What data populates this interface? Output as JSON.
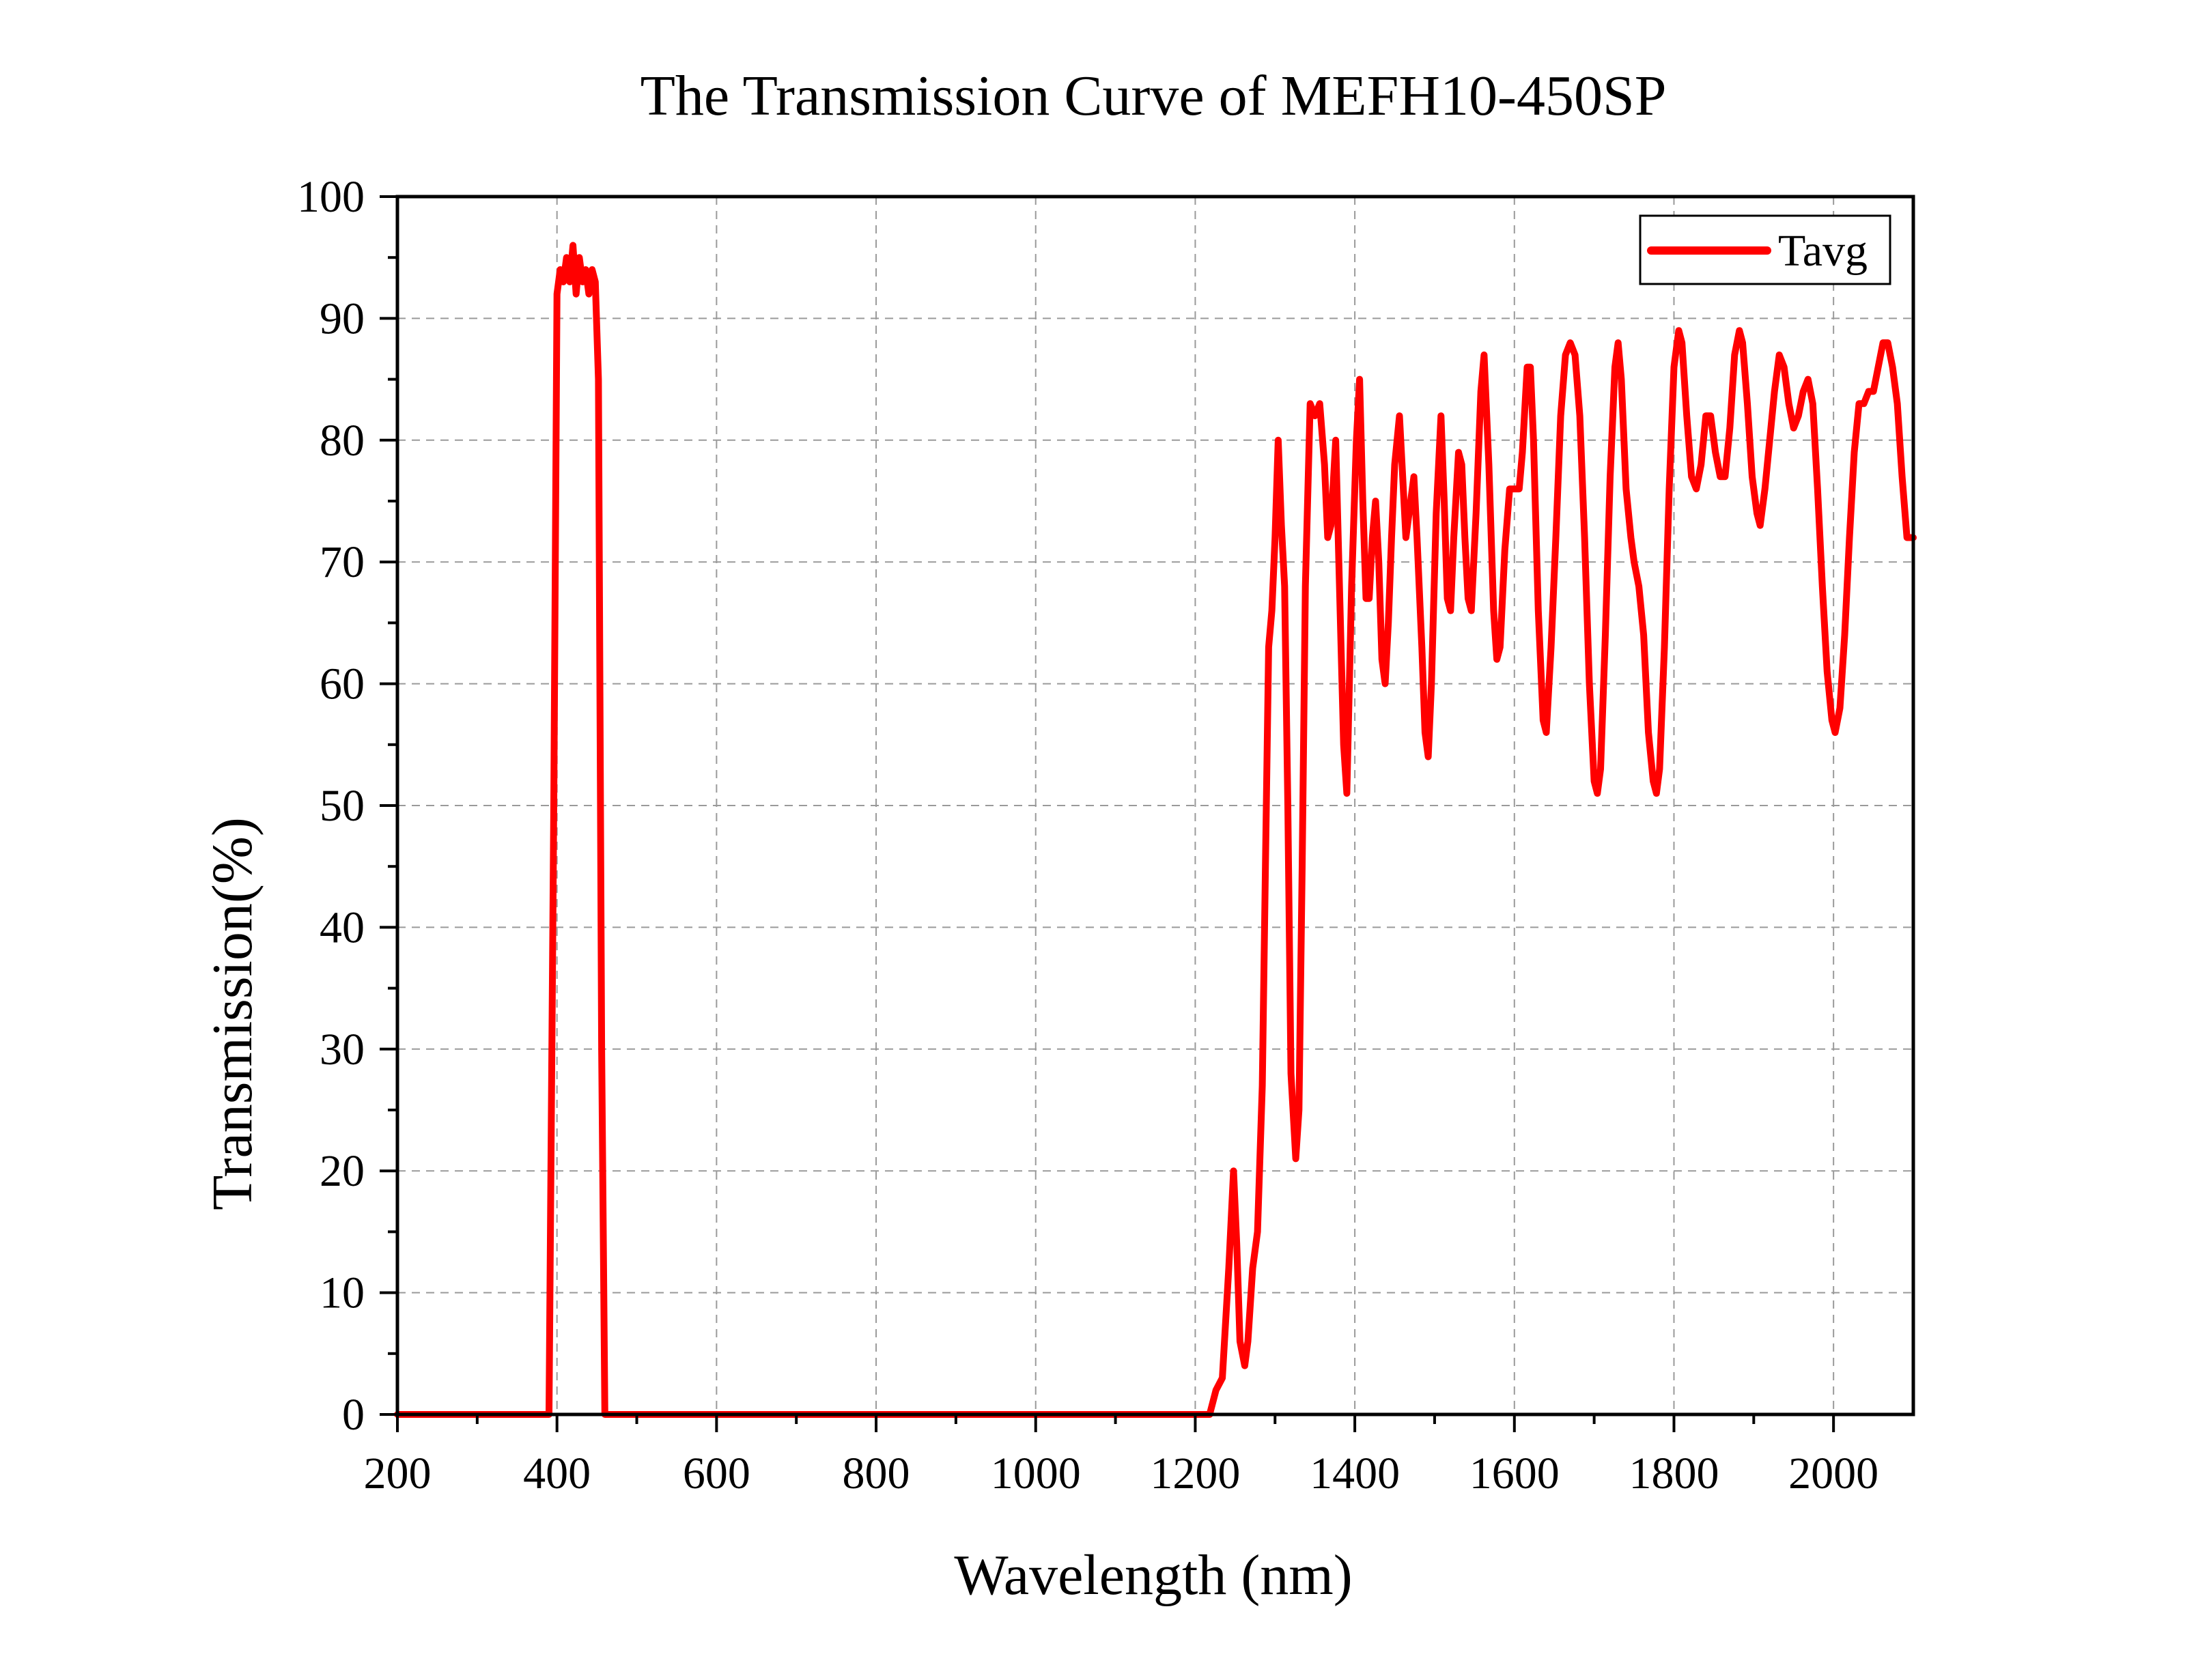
{
  "chart_data": {
    "type": "line",
    "title": "The Transmission Curve of MEFH10-450SP",
    "xlabel": "Wavelength (nm)",
    "ylabel": "Transmission(%)",
    "xlim": [
      200,
      2100
    ],
    "ylim": [
      0,
      100
    ],
    "x_ticks": [
      200,
      400,
      600,
      800,
      1000,
      1200,
      1400,
      1600,
      1800,
      2000
    ],
    "x_tick_labels": [
      "200",
      "400",
      "600",
      "800",
      "1000",
      "1200",
      "1400",
      "1600",
      "1800",
      "2000"
    ],
    "y_ticks": [
      0,
      10,
      20,
      30,
      40,
      50,
      60,
      70,
      80,
      90,
      100
    ],
    "y_tick_labels": [
      "0",
      "10",
      "20",
      "30",
      "40",
      "50",
      "60",
      "70",
      "80",
      "90",
      "100"
    ],
    "grid": true,
    "legend_position": "top-right",
    "series": [
      {
        "name": "Tavg",
        "color": "#ff0000",
        "points": [
          [
            200,
            0
          ],
          [
            390,
            0
          ],
          [
            396,
            50
          ],
          [
            400,
            92
          ],
          [
            404,
            94
          ],
          [
            408,
            93
          ],
          [
            412,
            95
          ],
          [
            416,
            93
          ],
          [
            420,
            96
          ],
          [
            424,
            92
          ],
          [
            428,
            95
          ],
          [
            432,
            93
          ],
          [
            436,
            94
          ],
          [
            440,
            92
          ],
          [
            444,
            94
          ],
          [
            448,
            93
          ],
          [
            452,
            85
          ],
          [
            456,
            30
          ],
          [
            460,
            0
          ],
          [
            1210,
            0
          ],
          [
            1218,
            0
          ],
          [
            1226,
            2
          ],
          [
            1234,
            3
          ],
          [
            1242,
            12
          ],
          [
            1248,
            20
          ],
          [
            1252,
            14
          ],
          [
            1256,
            6
          ],
          [
            1262,
            4
          ],
          [
            1266,
            6
          ],
          [
            1272,
            12
          ],
          [
            1278,
            15
          ],
          [
            1284,
            27
          ],
          [
            1288,
            45
          ],
          [
            1292,
            63
          ],
          [
            1296,
            66
          ],
          [
            1300,
            72
          ],
          [
            1304,
            80
          ],
          [
            1308,
            73
          ],
          [
            1312,
            68
          ],
          [
            1316,
            50
          ],
          [
            1320,
            28
          ],
          [
            1326,
            21
          ],
          [
            1330,
            25
          ],
          [
            1334,
            45
          ],
          [
            1338,
            68
          ],
          [
            1344,
            83
          ],
          [
            1350,
            82
          ],
          [
            1356,
            83
          ],
          [
            1362,
            78
          ],
          [
            1366,
            72
          ],
          [
            1370,
            73
          ],
          [
            1376,
            80
          ],
          [
            1380,
            70
          ],
          [
            1386,
            55
          ],
          [
            1390,
            51
          ],
          [
            1396,
            68
          ],
          [
            1402,
            80
          ],
          [
            1406,
            85
          ],
          [
            1410,
            75
          ],
          [
            1414,
            67
          ],
          [
            1418,
            67
          ],
          [
            1422,
            72
          ],
          [
            1426,
            75
          ],
          [
            1430,
            70
          ],
          [
            1434,
            62
          ],
          [
            1438,
            60
          ],
          [
            1442,
            65
          ],
          [
            1446,
            72
          ],
          [
            1450,
            78
          ],
          [
            1456,
            82
          ],
          [
            1460,
            77
          ],
          [
            1464,
            72
          ],
          [
            1470,
            75
          ],
          [
            1474,
            77
          ],
          [
            1478,
            72
          ],
          [
            1484,
            63
          ],
          [
            1488,
            56
          ],
          [
            1492,
            54
          ],
          [
            1496,
            60
          ],
          [
            1502,
            74
          ],
          [
            1508,
            82
          ],
          [
            1512,
            75
          ],
          [
            1516,
            67
          ],
          [
            1520,
            66
          ],
          [
            1524,
            72
          ],
          [
            1530,
            79
          ],
          [
            1534,
            78
          ],
          [
            1538,
            72
          ],
          [
            1542,
            67
          ],
          [
            1546,
            66
          ],
          [
            1552,
            74
          ],
          [
            1558,
            84
          ],
          [
            1562,
            87
          ],
          [
            1568,
            78
          ],
          [
            1574,
            66
          ],
          [
            1578,
            62
          ],
          [
            1582,
            63
          ],
          [
            1588,
            71
          ],
          [
            1594,
            76
          ],
          [
            1600,
            76
          ],
          [
            1606,
            76
          ],
          [
            1610,
            79
          ],
          [
            1616,
            86
          ],
          [
            1620,
            86
          ],
          [
            1624,
            80
          ],
          [
            1630,
            66
          ],
          [
            1636,
            57
          ],
          [
            1640,
            56
          ],
          [
            1646,
            63
          ],
          [
            1652,
            72
          ],
          [
            1658,
            82
          ],
          [
            1664,
            87
          ],
          [
            1670,
            88
          ],
          [
            1676,
            87
          ],
          [
            1682,
            82
          ],
          [
            1688,
            72
          ],
          [
            1694,
            60
          ],
          [
            1700,
            52
          ],
          [
            1704,
            51
          ],
          [
            1708,
            53
          ],
          [
            1714,
            64
          ],
          [
            1720,
            77
          ],
          [
            1726,
            86
          ],
          [
            1730,
            88
          ],
          [
            1734,
            85
          ],
          [
            1740,
            76
          ],
          [
            1746,
            72
          ],
          [
            1750,
            70
          ],
          [
            1756,
            68
          ],
          [
            1762,
            64
          ],
          [
            1768,
            56
          ],
          [
            1774,
            52
          ],
          [
            1778,
            51
          ],
          [
            1782,
            53
          ],
          [
            1788,
            63
          ],
          [
            1794,
            76
          ],
          [
            1800,
            86
          ],
          [
            1806,
            89
          ],
          [
            1810,
            88
          ],
          [
            1816,
            82
          ],
          [
            1822,
            77
          ],
          [
            1828,
            76
          ],
          [
            1834,
            78
          ],
          [
            1840,
            82
          ],
          [
            1846,
            82
          ],
          [
            1852,
            79
          ],
          [
            1858,
            77
          ],
          [
            1864,
            77
          ],
          [
            1870,
            81
          ],
          [
            1876,
            87
          ],
          [
            1882,
            89
          ],
          [
            1886,
            88
          ],
          [
            1892,
            83
          ],
          [
            1898,
            77
          ],
          [
            1904,
            74
          ],
          [
            1908,
            73
          ],
          [
            1914,
            76
          ],
          [
            1920,
            80
          ],
          [
            1926,
            84
          ],
          [
            1932,
            87
          ],
          [
            1938,
            86
          ],
          [
            1944,
            83
          ],
          [
            1950,
            81
          ],
          [
            1956,
            82
          ],
          [
            1962,
            84
          ],
          [
            1968,
            85
          ],
          [
            1974,
            83
          ],
          [
            1980,
            76
          ],
          [
            1986,
            68
          ],
          [
            1992,
            61
          ],
          [
            1998,
            57
          ],
          [
            2002,
            56
          ],
          [
            2008,
            58
          ],
          [
            2014,
            64
          ],
          [
            2020,
            72
          ],
          [
            2026,
            79
          ],
          [
            2032,
            83
          ],
          [
            2038,
            83
          ],
          [
            2044,
            84
          ],
          [
            2050,
            84
          ],
          [
            2056,
            86
          ],
          [
            2062,
            88
          ],
          [
            2068,
            88
          ],
          [
            2074,
            86
          ],
          [
            2080,
            83
          ],
          [
            2086,
            77
          ],
          [
            2092,
            72
          ],
          [
            2100,
            72
          ]
        ]
      }
    ]
  }
}
